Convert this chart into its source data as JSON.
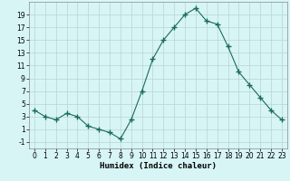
{
  "x": [
    0,
    1,
    2,
    3,
    4,
    5,
    6,
    7,
    8,
    9,
    10,
    11,
    12,
    13,
    14,
    15,
    16,
    17,
    18,
    19,
    20,
    21,
    22,
    23
  ],
  "y": [
    4,
    3,
    2.5,
    3.5,
    3,
    1.5,
    1,
    0.5,
    -0.5,
    2.5,
    7,
    12,
    15,
    17,
    19,
    20,
    18,
    17.5,
    14,
    10,
    8,
    6,
    4,
    2.5
  ],
  "xlabel": "Humidex (Indice chaleur)",
  "xlim": [
    -0.5,
    23.5
  ],
  "ylim": [
    -2,
    21
  ],
  "yticks": [
    -1,
    1,
    3,
    5,
    7,
    9,
    11,
    13,
    15,
    17,
    19
  ],
  "xticks": [
    0,
    1,
    2,
    3,
    4,
    5,
    6,
    7,
    8,
    9,
    10,
    11,
    12,
    13,
    14,
    15,
    16,
    17,
    18,
    19,
    20,
    21,
    22,
    23
  ],
  "line_color": "#1a6b5a",
  "marker": "+",
  "marker_size": 4,
  "bg_color": "#d8f5f5",
  "grid_color": "#b8d4d4",
  "tick_fontsize": 5.5,
  "xlabel_fontsize": 6.5
}
